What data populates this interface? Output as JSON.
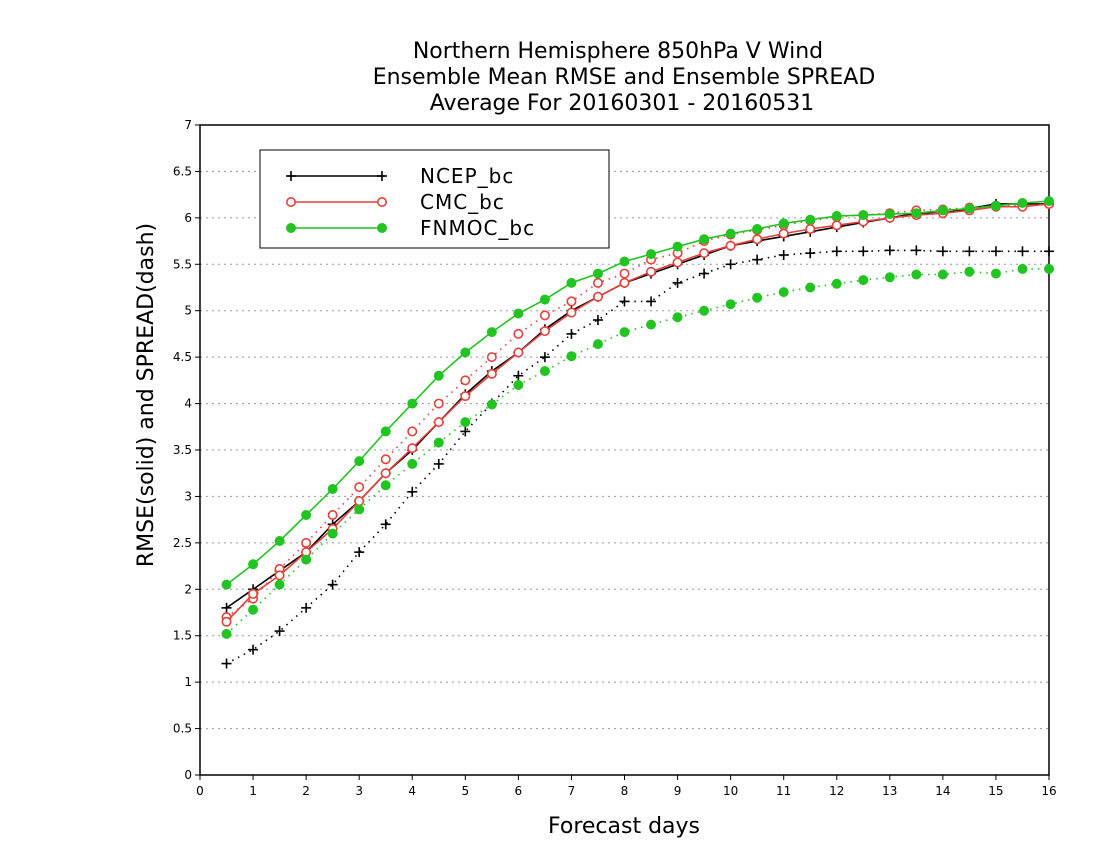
{
  "chart_data": {
    "type": "line",
    "title_lines": [
      "Northern Hemisphere 850hPa V Wind",
      "Ensemble Mean RMSE and Ensemble SPREAD",
      "Average For 20160301 - 20160531"
    ],
    "xlabel": "Forecast days",
    "ylabel": "RMSE(solid) and SPREAD(dash)",
    "xlim": [
      0,
      16
    ],
    "ylim": [
      0,
      7
    ],
    "xticks": [
      "0",
      "1",
      "2",
      "3",
      "4",
      "5",
      "6",
      "7",
      "8",
      "9",
      "10",
      "11",
      "12",
      "13",
      "14",
      "15",
      "16"
    ],
    "yticks": [
      "0",
      "0.5",
      "1",
      "1.5",
      "2",
      "2.5",
      "3",
      "3.5",
      "4",
      "4.5",
      "5",
      "5.5",
      "6",
      "6.5",
      "7"
    ],
    "grid": "dotted horizontal",
    "legend_position": "top-left",
    "x": [
      0.5,
      1,
      1.5,
      2,
      2.5,
      3,
      3.5,
      4,
      4.5,
      5,
      5.5,
      6,
      6.5,
      7,
      7.5,
      8,
      8.5,
      9,
      9.5,
      10,
      10.5,
      11,
      11.5,
      12,
      12.5,
      13,
      13.5,
      14,
      14.5,
      15,
      15.5,
      16
    ],
    "series": [
      {
        "name": "NCEP_bc",
        "color": "#000000",
        "marker": "plus",
        "rmse": [
          1.8,
          2.0,
          2.2,
          2.4,
          2.7,
          2.95,
          3.25,
          3.5,
          3.8,
          4.1,
          4.35,
          4.55,
          4.8,
          5.0,
          5.15,
          5.3,
          5.4,
          5.5,
          5.6,
          5.7,
          5.75,
          5.8,
          5.85,
          5.9,
          5.95,
          6.0,
          6.05,
          6.05,
          6.1,
          6.15,
          6.15,
          6.15
        ],
        "spread": [
          1.2,
          1.35,
          1.55,
          1.8,
          2.05,
          2.4,
          2.7,
          3.05,
          3.35,
          3.7,
          4.0,
          4.3,
          4.5,
          4.75,
          4.9,
          5.1,
          5.1,
          5.3,
          5.4,
          5.5,
          5.55,
          5.6,
          5.62,
          5.64,
          5.64,
          5.65,
          5.65,
          5.64,
          5.64,
          5.64,
          5.64,
          5.64
        ]
      },
      {
        "name": "CMC_bc",
        "color": "#e8403c",
        "marker": "open-circle",
        "rmse": [
          1.65,
          1.95,
          2.15,
          2.4,
          2.65,
          2.95,
          3.25,
          3.52,
          3.8,
          4.08,
          4.32,
          4.55,
          4.78,
          4.98,
          5.15,
          5.3,
          5.42,
          5.52,
          5.62,
          5.7,
          5.77,
          5.83,
          5.88,
          5.92,
          5.96,
          6.0,
          6.03,
          6.05,
          6.08,
          6.12,
          6.12,
          6.15
        ],
        "spread": [
          1.7,
          1.9,
          2.22,
          2.5,
          2.8,
          3.1,
          3.4,
          3.7,
          4.0,
          4.25,
          4.5,
          4.75,
          4.95,
          5.1,
          5.3,
          5.4,
          5.55,
          5.62,
          5.75,
          5.82,
          5.87,
          5.92,
          5.97,
          6.01,
          6.03,
          6.05,
          6.08,
          6.09,
          6.11,
          6.13,
          6.13,
          6.15
        ]
      },
      {
        "name": "FNMOC_bc",
        "color": "#22c422",
        "marker": "filled-circle",
        "rmse": [
          2.05,
          2.27,
          2.52,
          2.8,
          3.08,
          3.38,
          3.7,
          4.0,
          4.3,
          4.55,
          4.77,
          4.97,
          5.12,
          5.3,
          5.4,
          5.53,
          5.61,
          5.69,
          5.77,
          5.83,
          5.88,
          5.94,
          5.98,
          6.02,
          6.03,
          6.04,
          6.05,
          6.08,
          6.1,
          6.13,
          6.16,
          6.18
        ],
        "spread": [
          1.52,
          1.78,
          2.05,
          2.32,
          2.6,
          2.86,
          3.12,
          3.35,
          3.58,
          3.8,
          3.99,
          4.2,
          4.35,
          4.51,
          4.64,
          4.77,
          4.85,
          4.93,
          5.0,
          5.07,
          5.14,
          5.2,
          5.25,
          5.29,
          5.33,
          5.36,
          5.39,
          5.39,
          5.42,
          5.4,
          5.45,
          5.45
        ]
      }
    ]
  }
}
